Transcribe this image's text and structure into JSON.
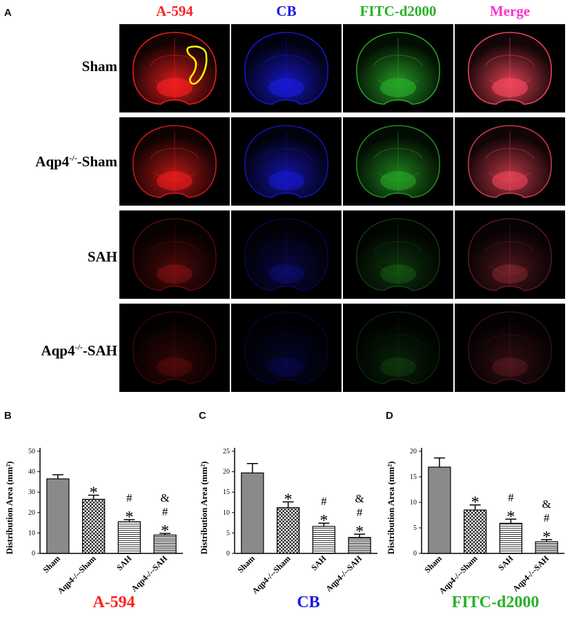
{
  "panel_a": {
    "letter": "A",
    "columns": [
      {
        "label": "A-594",
        "color": "#ff2020"
      },
      {
        "label": "CB",
        "color": "#1a1adf"
      },
      {
        "label": "FITC-d2000",
        "color": "#2ab02a"
      },
      {
        "label": "Merge",
        "color": "#ff2fd0"
      }
    ],
    "rows": [
      {
        "label": "Sham",
        "sup": "",
        "suffix": "",
        "intensity": 1.0
      },
      {
        "label": "Aqp4",
        "sup": "-/-",
        "suffix": "-Sham",
        "intensity": 0.85
      },
      {
        "label": "SAH",
        "sup": "",
        "suffix": "",
        "intensity": 0.35
      },
      {
        "label": "Aqp4",
        "sup": "-/-",
        "suffix": "-SAH",
        "intensity": 0.22
      }
    ]
  },
  "chart_data": [
    {
      "letter": "B",
      "type": "bar",
      "ylabel": "Distribution Area (mm²)",
      "ylim": [
        0,
        50
      ],
      "yticks": [
        0,
        10,
        20,
        30,
        40,
        50
      ],
      "categories": [
        "Sham",
        "Aqp4-/--Sham",
        "SAH",
        "Aqp4-/--SAH"
      ],
      "values": [
        36.5,
        26.5,
        15.5,
        9.0
      ],
      "errors": [
        2.0,
        2.0,
        1.0,
        0.8
      ],
      "annotations": [
        [],
        [
          "*"
        ],
        [
          "*",
          "#"
        ],
        [
          "*",
          "#",
          "&"
        ]
      ],
      "bottom_label": "A-594",
      "bottom_color": "#ff2020"
    },
    {
      "letter": "C",
      "type": "bar",
      "ylabel": "Distribution Area (mm²)",
      "ylim": [
        0,
        25
      ],
      "yticks": [
        0,
        5,
        10,
        15,
        20,
        25
      ],
      "categories": [
        "Sham",
        "Aqp4-/--Sham",
        "SAH",
        "Aqp4-/--SAH"
      ],
      "values": [
        19.7,
        11.2,
        6.6,
        3.9
      ],
      "errors": [
        2.3,
        1.4,
        0.8,
        0.8
      ],
      "annotations": [
        [],
        [
          "*"
        ],
        [
          "*",
          "#"
        ],
        [
          "*",
          "#",
          "&"
        ]
      ],
      "bottom_label": "CB",
      "bottom_color": "#1a1adf"
    },
    {
      "letter": "D",
      "type": "bar",
      "ylabel": "Distribution Area (mm²)",
      "ylim": [
        0,
        20
      ],
      "yticks": [
        0,
        5,
        10,
        15,
        20
      ],
      "categories": [
        "Sham",
        "Aqp4-/--Sham",
        "SAH",
        "Aqp4-/--SAH"
      ],
      "values": [
        16.9,
        8.5,
        5.9,
        2.3
      ],
      "errors": [
        1.8,
        1.0,
        0.8,
        0.4
      ],
      "annotations": [
        [],
        [
          "*"
        ],
        [
          "*",
          "#"
        ],
        [
          "*",
          "#",
          "&"
        ]
      ],
      "bottom_label": "FITC-d2000",
      "bottom_color": "#2ab02a"
    }
  ]
}
